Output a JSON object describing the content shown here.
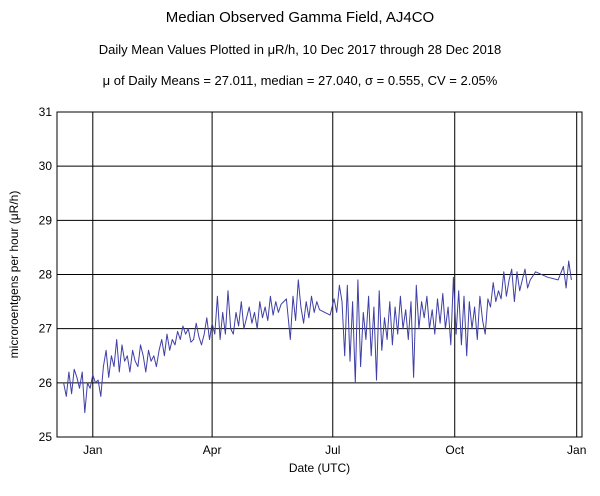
{
  "title": "Median Observed Gamma Field, AJ4CO",
  "subtitle": "Daily Mean Values Plotted in μR/h, 10 Dec 2017 through 28 Dec 2018",
  "stats_line": "μ of Daily Means = 27.011,   median = 27.040,   σ = 0.555,   CV = 2.05%",
  "colors": {
    "series": "#3f3fa6",
    "grid": "#000000",
    "background": "#ffffff"
  },
  "chart_data": {
    "type": "line",
    "title": "Median Observed Gamma Field, AJ4CO",
    "xlabel": "Date (UTC)",
    "ylabel": "microroentgens per hour (μR/h)",
    "ylim": [
      25,
      31
    ],
    "xlim": [
      "2017-12-05",
      "2019-01-05"
    ],
    "x_ticks": [
      {
        "date": "2018-01-01",
        "label": "Jan"
      },
      {
        "date": "2018-04-01",
        "label": "Apr"
      },
      {
        "date": "2018-07-01",
        "label": "Jul"
      },
      {
        "date": "2018-10-01",
        "label": "Oct"
      },
      {
        "date": "2019-01-01",
        "label": "Jan"
      }
    ],
    "y_ticks": [
      25,
      26,
      27,
      28,
      29,
      30,
      31
    ],
    "grid": true,
    "series": [
      {
        "points": [
          [
            "2017-12-10",
            26.0
          ],
          [
            "2017-12-12",
            25.75
          ],
          [
            "2017-12-14",
            26.2
          ],
          [
            "2017-12-16",
            25.8
          ],
          [
            "2017-12-18",
            26.25
          ],
          [
            "2017-12-20",
            26.1
          ],
          [
            "2017-12-22",
            25.9
          ],
          [
            "2017-12-24",
            26.2
          ],
          [
            "2017-12-26",
            25.45
          ],
          [
            "2017-12-28",
            26.0
          ],
          [
            "2017-12-30",
            25.9
          ],
          [
            "2018-01-01",
            26.15
          ],
          [
            "2018-01-03",
            26.0
          ],
          [
            "2018-01-05",
            26.05
          ],
          [
            "2018-01-07",
            25.75
          ],
          [
            "2018-01-09",
            26.3
          ],
          [
            "2018-01-11",
            26.6
          ],
          [
            "2018-01-13",
            26.1
          ],
          [
            "2018-01-15",
            26.5
          ],
          [
            "2018-01-17",
            26.3
          ],
          [
            "2018-01-19",
            26.8
          ],
          [
            "2018-01-21",
            26.2
          ],
          [
            "2018-01-23",
            26.7
          ],
          [
            "2018-01-25",
            26.4
          ],
          [
            "2018-01-27",
            26.5
          ],
          [
            "2018-01-29",
            26.2
          ],
          [
            "2018-01-31",
            26.6
          ],
          [
            "2018-02-02",
            26.4
          ],
          [
            "2018-02-04",
            26.3
          ],
          [
            "2018-02-06",
            26.7
          ],
          [
            "2018-02-08",
            26.5
          ],
          [
            "2018-02-10",
            26.2
          ],
          [
            "2018-02-12",
            26.6
          ],
          [
            "2018-02-14",
            26.4
          ],
          [
            "2018-02-16",
            26.5
          ],
          [
            "2018-02-18",
            26.3
          ],
          [
            "2018-02-20",
            26.6
          ],
          [
            "2018-02-22",
            26.8
          ],
          [
            "2018-02-24",
            26.5
          ],
          [
            "2018-02-26",
            26.9
          ],
          [
            "2018-02-28",
            26.6
          ],
          [
            "2018-03-02",
            26.8
          ],
          [
            "2018-03-04",
            26.7
          ],
          [
            "2018-03-06",
            26.95
          ],
          [
            "2018-03-08",
            26.8
          ],
          [
            "2018-03-10",
            27.05
          ],
          [
            "2018-03-12",
            26.9
          ],
          [
            "2018-03-14",
            27.0
          ],
          [
            "2018-03-16",
            26.75
          ],
          [
            "2018-03-18",
            26.8
          ],
          [
            "2018-03-20",
            27.1
          ],
          [
            "2018-03-22",
            26.85
          ],
          [
            "2018-03-24",
            26.7
          ],
          [
            "2018-03-26",
            26.9
          ],
          [
            "2018-03-28",
            27.2
          ],
          [
            "2018-03-30",
            26.8
          ],
          [
            "2018-04-01",
            27.1
          ],
          [
            "2018-04-03",
            26.9
          ],
          [
            "2018-04-05",
            27.6
          ],
          [
            "2018-04-07",
            26.8
          ],
          [
            "2018-04-09",
            27.3
          ],
          [
            "2018-04-11",
            26.9
          ],
          [
            "2018-04-13",
            27.7
          ],
          [
            "2018-04-15",
            27.0
          ],
          [
            "2018-04-17",
            26.9
          ],
          [
            "2018-04-19",
            27.3
          ],
          [
            "2018-04-21",
            27.05
          ],
          [
            "2018-04-23",
            27.5
          ],
          [
            "2018-04-25",
            27.0
          ],
          [
            "2018-04-27",
            27.2
          ],
          [
            "2018-04-29",
            27.4
          ],
          [
            "2018-05-01",
            27.1
          ],
          [
            "2018-05-03",
            27.3
          ],
          [
            "2018-05-05",
            27.0
          ],
          [
            "2018-05-07",
            27.5
          ],
          [
            "2018-05-09",
            27.2
          ],
          [
            "2018-05-11",
            27.4
          ],
          [
            "2018-05-13",
            27.15
          ],
          [
            "2018-05-15",
            27.6
          ],
          [
            "2018-05-17",
            27.25
          ],
          [
            "2018-05-19",
            27.5
          ],
          [
            "2018-05-21",
            27.3
          ],
          [
            "2018-05-23",
            27.45
          ],
          [
            "2018-05-25",
            27.5
          ],
          [
            "2018-05-27",
            27.55
          ],
          [
            "2018-05-30",
            26.8
          ],
          [
            "2018-06-01",
            27.6
          ],
          [
            "2018-06-03",
            27.15
          ],
          [
            "2018-06-05",
            27.9
          ],
          [
            "2018-06-07",
            27.4
          ],
          [
            "2018-06-09",
            27.1
          ],
          [
            "2018-06-11",
            27.5
          ],
          [
            "2018-06-13",
            27.2
          ],
          [
            "2018-06-15",
            27.6
          ],
          [
            "2018-06-17",
            27.3
          ],
          [
            "2018-06-19",
            27.5
          ],
          [
            "2018-06-21",
            27.35
          ],
          [
            "2018-06-25",
            27.3
          ],
          [
            "2018-06-29",
            27.25
          ],
          [
            "2018-07-02",
            27.55
          ],
          [
            "2018-07-04",
            27.3
          ],
          [
            "2018-07-06",
            27.8
          ],
          [
            "2018-07-08",
            27.5
          ],
          [
            "2018-07-10",
            26.5
          ],
          [
            "2018-07-12",
            27.8
          ],
          [
            "2018-07-14",
            26.4
          ],
          [
            "2018-07-16",
            27.5
          ],
          [
            "2018-07-18",
            26.0
          ],
          [
            "2018-07-20",
            27.9
          ],
          [
            "2018-07-22",
            26.3
          ],
          [
            "2018-07-24",
            27.3
          ],
          [
            "2018-07-26",
            26.8
          ],
          [
            "2018-07-28",
            27.6
          ],
          [
            "2018-07-30",
            26.5
          ],
          [
            "2018-08-01",
            27.4
          ],
          [
            "2018-08-03",
            26.05
          ],
          [
            "2018-08-05",
            27.7
          ],
          [
            "2018-08-07",
            26.6
          ],
          [
            "2018-08-09",
            27.2
          ],
          [
            "2018-08-11",
            26.8
          ],
          [
            "2018-08-13",
            27.5
          ],
          [
            "2018-08-15",
            26.7
          ],
          [
            "2018-08-17",
            27.4
          ],
          [
            "2018-08-19",
            26.9
          ],
          [
            "2018-08-21",
            27.6
          ],
          [
            "2018-08-23",
            27.0
          ],
          [
            "2018-08-25",
            27.35
          ],
          [
            "2018-08-27",
            26.8
          ],
          [
            "2018-08-29",
            27.5
          ],
          [
            "2018-08-31",
            26.1
          ],
          [
            "2018-09-02",
            27.8
          ],
          [
            "2018-09-04",
            27.0
          ],
          [
            "2018-09-06",
            27.5
          ],
          [
            "2018-09-08",
            27.2
          ],
          [
            "2018-09-10",
            27.6
          ],
          [
            "2018-09-12",
            27.0
          ],
          [
            "2018-09-14",
            27.35
          ],
          [
            "2018-09-16",
            26.9
          ],
          [
            "2018-09-18",
            27.55
          ],
          [
            "2018-09-20",
            27.1
          ],
          [
            "2018-09-22",
            27.65
          ],
          [
            "2018-09-24",
            27.0
          ],
          [
            "2018-09-26",
            27.4
          ],
          [
            "2018-09-28",
            26.7
          ],
          [
            "2018-09-30",
            27.95
          ],
          [
            "2018-10-02",
            26.9
          ],
          [
            "2018-10-04",
            27.7
          ],
          [
            "2018-10-06",
            26.7
          ],
          [
            "2018-10-08",
            27.6
          ],
          [
            "2018-10-10",
            26.5
          ],
          [
            "2018-10-12",
            27.5
          ],
          [
            "2018-10-14",
            27.0
          ],
          [
            "2018-10-16",
            27.4
          ],
          [
            "2018-10-18",
            26.8
          ],
          [
            "2018-10-20",
            27.6
          ],
          [
            "2018-10-22",
            27.15
          ],
          [
            "2018-10-24",
            26.9
          ],
          [
            "2018-10-26",
            27.55
          ],
          [
            "2018-10-28",
            27.4
          ],
          [
            "2018-10-30",
            27.85
          ],
          [
            "2018-11-01",
            27.5
          ],
          [
            "2018-11-03",
            27.7
          ],
          [
            "2018-11-05",
            27.55
          ],
          [
            "2018-11-07",
            28.05
          ],
          [
            "2018-11-09",
            27.6
          ],
          [
            "2018-11-11",
            27.9
          ],
          [
            "2018-11-13",
            28.1
          ],
          [
            "2018-11-15",
            27.5
          ],
          [
            "2018-11-17",
            28.05
          ],
          [
            "2018-11-19",
            27.7
          ],
          [
            "2018-11-21",
            27.9
          ],
          [
            "2018-11-23",
            28.1
          ],
          [
            "2018-11-25",
            27.75
          ],
          [
            "2018-11-27",
            27.9
          ],
          [
            "2018-12-01",
            28.05
          ],
          [
            "2018-12-10",
            27.95
          ],
          [
            "2018-12-18",
            27.9
          ],
          [
            "2018-12-22",
            28.15
          ],
          [
            "2018-12-24",
            27.75
          ],
          [
            "2018-12-26",
            28.25
          ],
          [
            "2018-12-28",
            27.9
          ]
        ]
      }
    ]
  }
}
